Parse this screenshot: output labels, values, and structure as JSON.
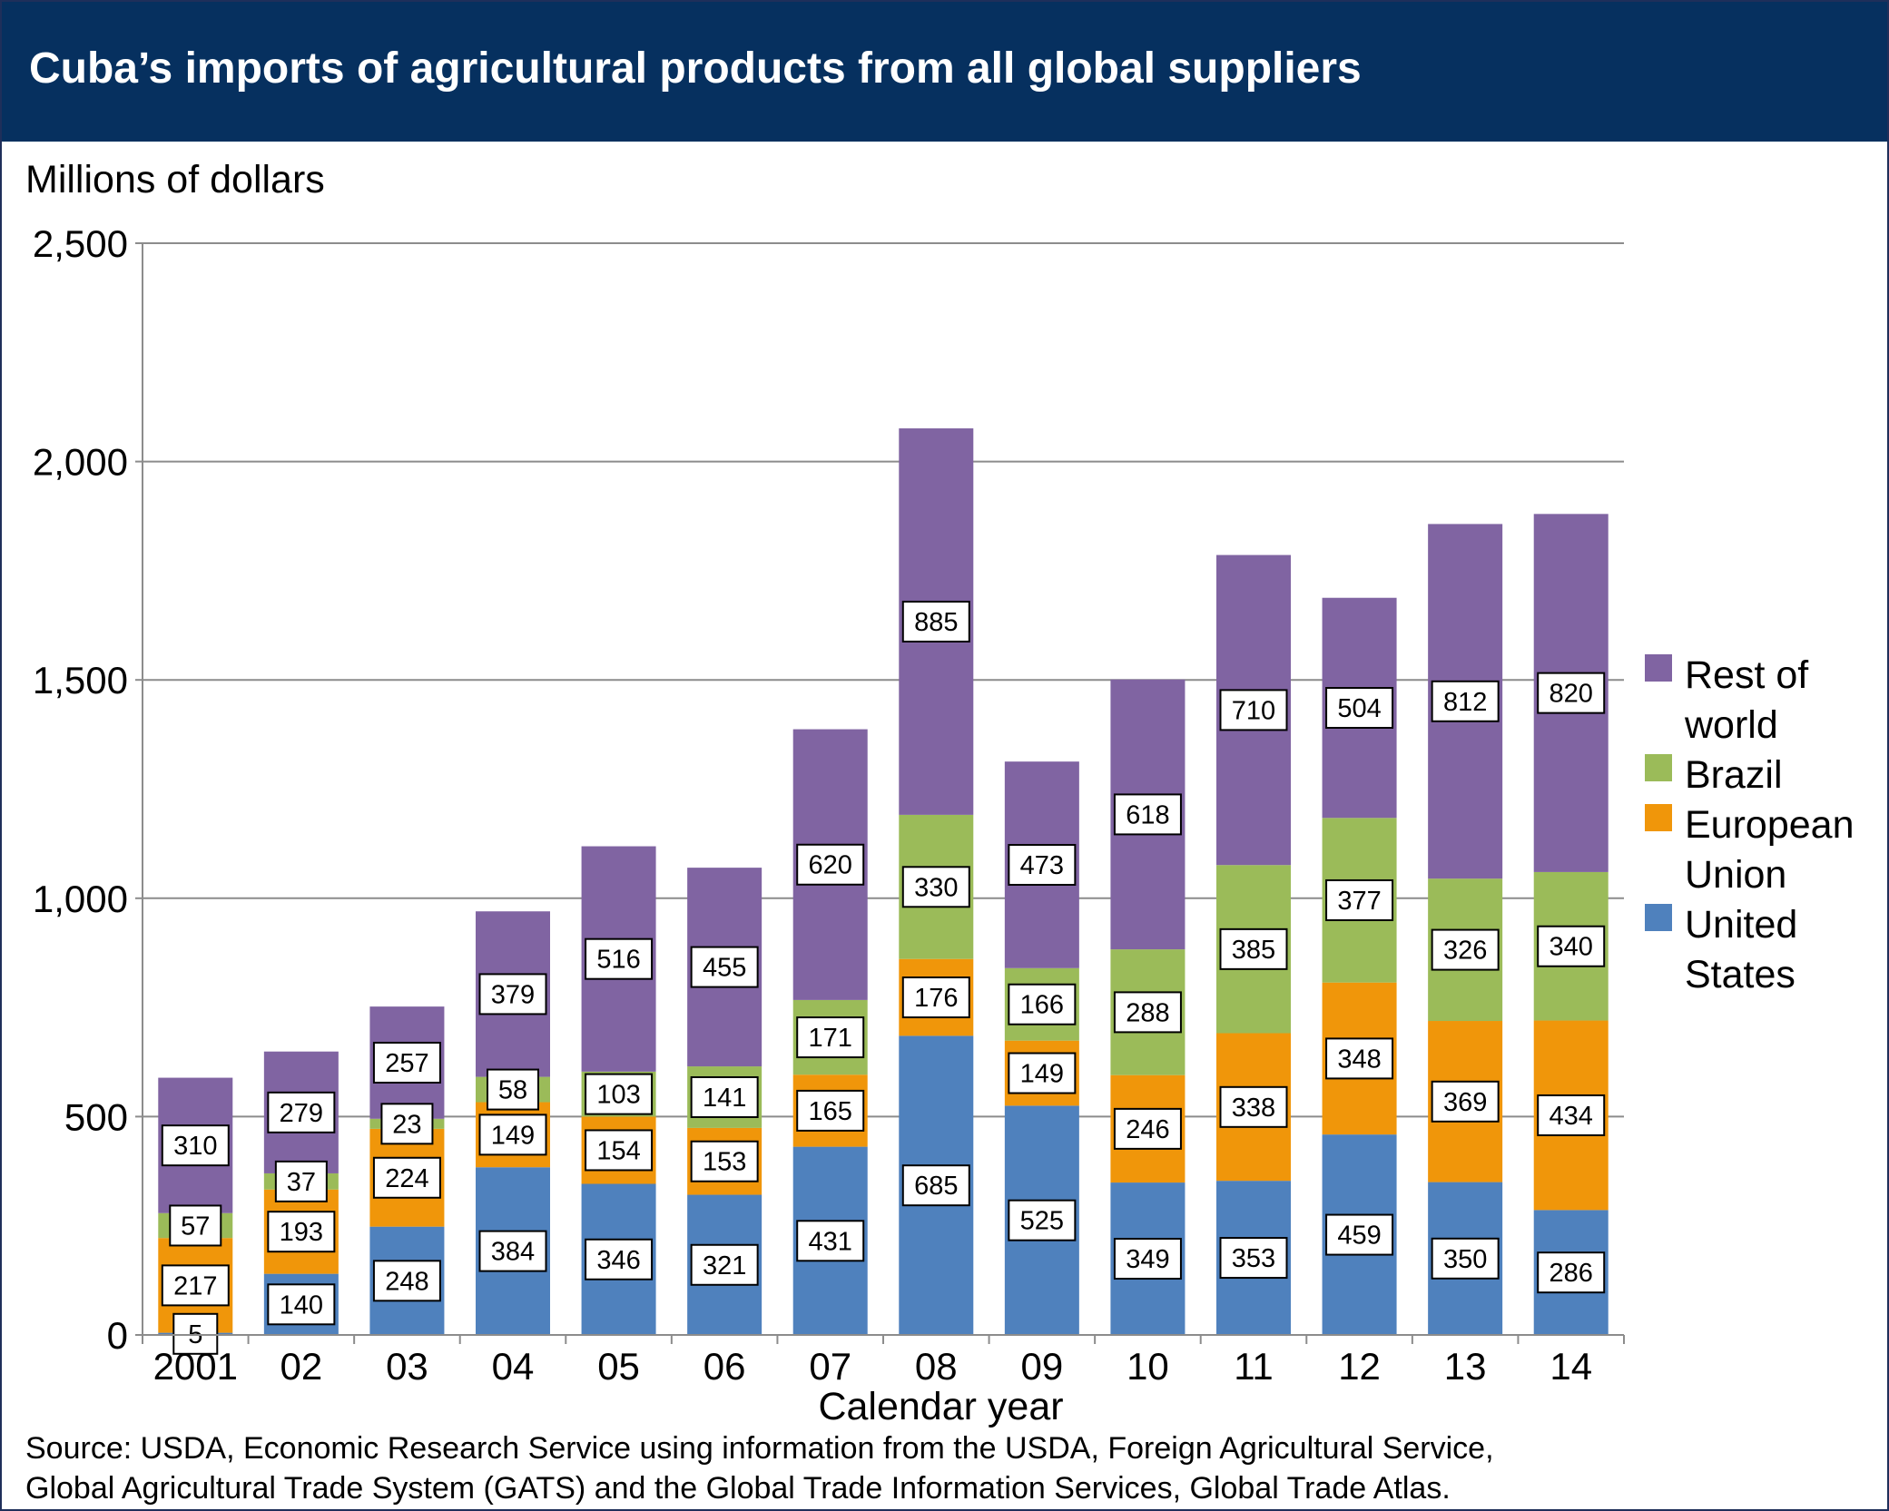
{
  "title": "Cuba’s imports of agricultural products from all global suppliers",
  "y_axis_label": "Millions of dollars",
  "x_axis_label": "Calendar year",
  "source_lines": [
    "Source: USDA, Economic Research Service using information from the USDA, Foreign Agricultural Service,",
    "Global Agricultural Trade System (GATS) and the Global Trade Information Services, Global Trade Atlas."
  ],
  "chart_data": {
    "type": "bar",
    "stacked": true,
    "categories": [
      "2001",
      "02",
      "03",
      "04",
      "05",
      "06",
      "07",
      "08",
      "09",
      "10",
      "11",
      "12",
      "13",
      "14"
    ],
    "series": [
      {
        "name": "United States",
        "legend_lines": [
          "United",
          "States"
        ],
        "color": "#4f81bd",
        "values": [
          5,
          140,
          248,
          384,
          346,
          321,
          431,
          685,
          525,
          349,
          353,
          459,
          350,
          286
        ]
      },
      {
        "name": "European Union",
        "legend_lines": [
          "European",
          "Union"
        ],
        "color": "#f0960a",
        "values": [
          217,
          193,
          224,
          149,
          154,
          153,
          165,
          176,
          149,
          246,
          338,
          348,
          369,
          434
        ]
      },
      {
        "name": "Brazil",
        "legend_lines": [
          "Brazil"
        ],
        "color": "#9bbb59",
        "values": [
          57,
          37,
          23,
          58,
          103,
          141,
          171,
          330,
          166,
          288,
          385,
          377,
          326,
          340
        ]
      },
      {
        "name": "Rest of world",
        "legend_lines": [
          "Rest of",
          "world"
        ],
        "color": "#8064a2",
        "values": [
          310,
          279,
          257,
          379,
          516,
          455,
          620,
          885,
          473,
          618,
          710,
          504,
          812,
          820
        ]
      }
    ],
    "y_ticks": [
      "0",
      "500",
      "1,000",
      "1,500",
      "2,000",
      "2,500"
    ],
    "ylim": [
      0,
      2500
    ],
    "grid": true,
    "legend_position": "right"
  }
}
